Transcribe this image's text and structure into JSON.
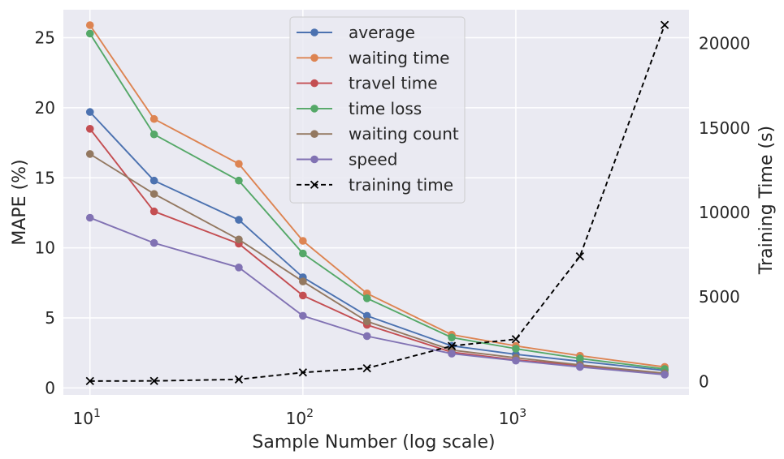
{
  "chart_data": {
    "type": "line",
    "title": "",
    "xlabel": "Sample Number (log scale)",
    "ylabel": "MAPE (%)",
    "y2label": "Training Time (s)",
    "xscale": "log",
    "grid": true,
    "legend_position": "top-center",
    "x": [
      10,
      20,
      50,
      100,
      200,
      500,
      1000,
      2000,
      5000
    ],
    "xlim": [
      7.5,
      6500
    ],
    "ylim": [
      -0.5,
      27
    ],
    "y2lim": [
      -800,
      22000
    ],
    "xticks": [
      {
        "value": 10,
        "base": "10",
        "exp": "1"
      },
      {
        "value": 100,
        "base": "10",
        "exp": "2"
      },
      {
        "value": 1000,
        "base": "10",
        "exp": "3"
      }
    ],
    "yticks": [
      0,
      5,
      10,
      15,
      20,
      25
    ],
    "y2ticks": [
      0,
      5000,
      10000,
      15000,
      20000
    ],
    "series": [
      {
        "name": "average",
        "axis": "left",
        "color": "#4c72b0",
        "style": "solid",
        "marker": "circle",
        "values": [
          19.7,
          14.8,
          12.0,
          7.9,
          5.15,
          3.0,
          2.4,
          1.9,
          1.25
        ]
      },
      {
        "name": "waiting time",
        "axis": "left",
        "color": "#dd8452",
        "style": "solid",
        "marker": "circle",
        "values": [
          25.9,
          19.2,
          16.0,
          10.5,
          6.75,
          3.8,
          3.0,
          2.3,
          1.5
        ]
      },
      {
        "name": "travel time",
        "axis": "left",
        "color": "#c44e52",
        "style": "solid",
        "marker": "circle",
        "values": [
          18.5,
          12.6,
          10.3,
          6.6,
          4.5,
          2.55,
          2.0,
          1.6,
          1.0
        ]
      },
      {
        "name": "time loss",
        "axis": "left",
        "color": "#55a868",
        "style": "solid",
        "marker": "circle",
        "values": [
          25.3,
          18.1,
          14.8,
          9.6,
          6.4,
          3.6,
          2.8,
          2.1,
          1.35
        ]
      },
      {
        "name": "waiting count",
        "axis": "left",
        "color": "#937860",
        "style": "solid",
        "marker": "circle",
        "values": [
          16.7,
          13.85,
          10.6,
          7.6,
          4.75,
          2.7,
          2.15,
          1.65,
          1.05
        ]
      },
      {
        "name": "speed",
        "axis": "left",
        "color": "#8172b3",
        "style": "solid",
        "marker": "circle",
        "values": [
          12.15,
          10.35,
          8.6,
          5.15,
          3.7,
          2.45,
          1.95,
          1.5,
          0.95
        ]
      },
      {
        "name": "training time",
        "axis": "right",
        "color": "#000000",
        "style": "dashed",
        "marker": "x",
        "values": [
          20,
          30,
          120,
          530,
          780,
          2100,
          2500,
          7400,
          21100
        ]
      }
    ]
  }
}
